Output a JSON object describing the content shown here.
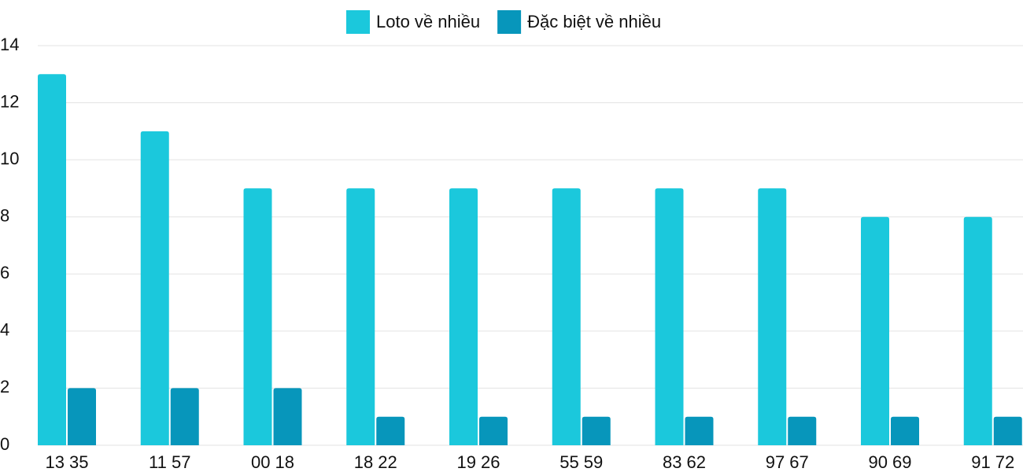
{
  "chart_data": {
    "type": "bar",
    "categories": [
      "13 35",
      "11 57",
      "00 18",
      "18 22",
      "19 26",
      "55 59",
      "83 62",
      "97 67",
      "90 69",
      "91 72"
    ],
    "series": [
      {
        "name": "Loto về nhiều",
        "color": "#1bc8dc",
        "values": [
          13,
          11,
          9,
          9,
          9,
          9,
          9,
          9,
          8,
          8
        ]
      },
      {
        "name": "Đặc biệt về nhiều",
        "color": "#0796bb",
        "values": [
          2,
          2,
          2,
          1,
          1,
          1,
          1,
          1,
          1,
          1
        ]
      }
    ],
    "ylim": [
      0,
      14
    ],
    "yticks": [
      0,
      2,
      4,
      6,
      8,
      10,
      12,
      14
    ],
    "grid": true,
    "legend": "top"
  }
}
